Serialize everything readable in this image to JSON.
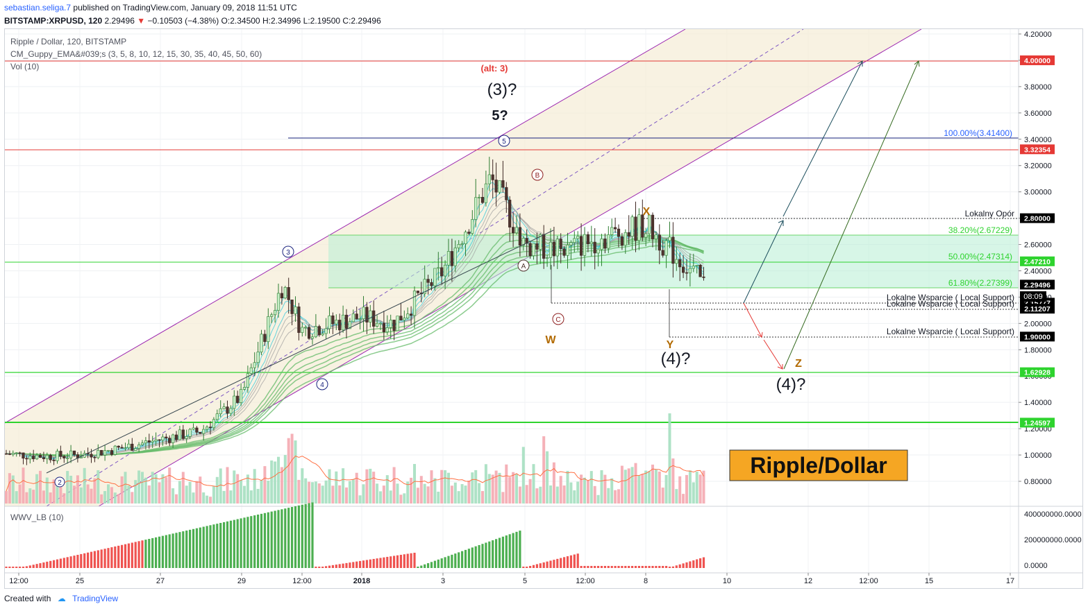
{
  "header": {
    "user": "sebastian.seliga.7",
    "published": "published on TradingView.com, January 09, 2018 11:51 UTC",
    "symbol": "BITSTAMP:XRPUSD, 120",
    "price": "2.29496",
    "change": "−0.10503 (−4.38%)",
    "o": "O:2.34500",
    "h": "H:2.34996",
    "l": "L:2.19500",
    "c": "C:2.29496"
  },
  "legend": {
    "line1": "Ripple / Dollar, 120, BITSTAMP",
    "line2": "CM_Guppy_EMA&#039;s (3, 5, 8, 10, 12, 15, 30, 35, 40, 45, 50, 60)",
    "line3": "Vol (10)",
    "wwv": "WWV_LB (10)"
  },
  "annotations": {
    "alt3": "(alt: 3)",
    "wave3q": "(3)?",
    "wave5q": "5?",
    "w": "W",
    "x": "X",
    "y": "Y",
    "z": "Z",
    "wave4q_a": "(4)?",
    "wave4q_b": "(4)?",
    "c1": "1",
    "c2": "2",
    "c3": "3",
    "c4": "4",
    "c5": "5",
    "ca": "A",
    "cb": "B",
    "cc": "C",
    "banner": "Ripple/Dollar",
    "lokalny_opor": "Lokalny Opór",
    "support1": "Lokalne Wsparcie ( Local Support)",
    "support2": "Lokalne Wsparcie ( Local Support)",
    "support3": "Lokalne Wsparcie ( Local Support)",
    "fib100": "100.00%(3.41400)",
    "fib382": "38.20%(2.67229)",
    "fib500": "50.00%(2.47314)",
    "fib618": "61.80%(2.27399)",
    "countdown": "08:09"
  },
  "price_tags": [
    {
      "label": "4.00000",
      "value": 4.0,
      "color": "#e53935"
    },
    {
      "label": "3.32354",
      "value": 3.32354,
      "color": "#e53935"
    },
    {
      "label": "2.80000",
      "value": 2.8,
      "color": "#000000"
    },
    {
      "label": "2.47210",
      "value": 2.4721,
      "color": "#2ed32e"
    },
    {
      "label": "2.29496",
      "value": 2.29496,
      "color": "#000000"
    },
    {
      "label": "2.15777",
      "value": 2.15777,
      "color": "#000000"
    },
    {
      "label": "2.11207",
      "value": 2.11207,
      "color": "#000000"
    },
    {
      "label": "1.90000",
      "value": 1.9,
      "color": "#000000"
    },
    {
      "label": "1.62928",
      "value": 1.62928,
      "color": "#2ed32e"
    },
    {
      "label": "1.24597",
      "value": 1.24597,
      "color": "#2ed32e"
    }
  ],
  "chart_data": {
    "type": "candlestick",
    "title": "Ripple / Dollar, 120, BITSTAMP",
    "y_ticks": [
      "4.20000",
      "4.00000",
      "3.80000",
      "3.60000",
      "3.40000",
      "3.20000",
      "3.00000",
      "2.80000",
      "2.60000",
      "2.40000",
      "2.20000",
      "2.00000",
      "1.80000",
      "1.60000",
      "1.40000",
      "1.20000",
      "1.00000",
      "0.80000"
    ],
    "ylim": [
      0.7,
      4.2
    ],
    "x_ticks": [
      "12:00",
      "25",
      "27",
      "29",
      "12:00",
      "2018",
      "3",
      "5",
      "12:00",
      "8",
      "10",
      "12",
      "12:00",
      "15",
      "17"
    ],
    "volume_ticks": [
      "400000000.0000",
      "200000000.0000",
      "0.0000"
    ],
    "series_close_anchors": [
      {
        "x": "Dec 23",
        "close": 1.01
      },
      {
        "x": "Dec 24",
        "close": 0.99
      },
      {
        "x": "Dec 25",
        "close": 1.0
      },
      {
        "x": "Dec 26",
        "close": 1.05
      },
      {
        "x": "Dec 27",
        "close": 1.12
      },
      {
        "x": "Dec 28",
        "close": 1.18
      },
      {
        "x": "Dec 29",
        "close": 1.45
      },
      {
        "x": "Dec 30",
        "close": 2.3
      },
      {
        "x": "Dec 31",
        "close": 1.95
      },
      {
        "x": "Jan 01",
        "close": 2.05
      },
      {
        "x": "Jan 02",
        "close": 2.0
      },
      {
        "x": "Jan 03",
        "close": 2.4
      },
      {
        "x": "Jan 04",
        "close": 3.1
      },
      {
        "x": "Jan 05",
        "close": 2.6
      },
      {
        "x": "Jan 06",
        "close": 2.55
      },
      {
        "x": "Jan 07",
        "close": 2.65
      },
      {
        "x": "Jan 08",
        "close": 2.75
      },
      {
        "x": "Jan 09",
        "close": 2.29
      }
    ],
    "horizontal_levels": [
      4.0,
      3.32354,
      1.62928,
      1.24597
    ],
    "fib_levels": [
      {
        "label": "100.00%(3.41400)",
        "value": 3.414
      },
      {
        "label": "38.20%(2.67229)",
        "value": 2.67229
      },
      {
        "label": "50.00%(2.47314)",
        "value": 2.47314
      },
      {
        "label": "61.80%(2.27399)",
        "value": 2.27399
      }
    ],
    "legend_position": "top-left",
    "grid": true
  },
  "footer": {
    "created": "Created with",
    "brand": "TradingView"
  }
}
